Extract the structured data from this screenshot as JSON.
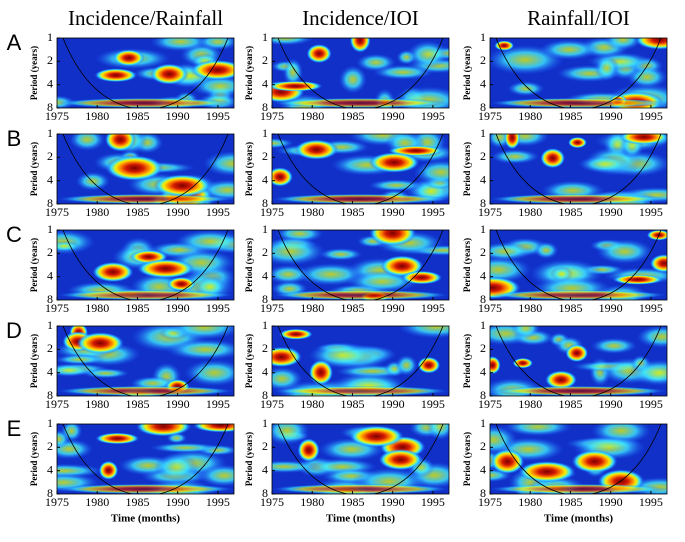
{
  "chart_data": {
    "type": "heatmap",
    "column_titles": [
      "Incidence/Rainfall",
      "Incidence/IOI",
      "Rainfall/IOI"
    ],
    "row_labels": [
      "A",
      "B",
      "C",
      "D",
      "E"
    ],
    "y_label": "Period (years)",
    "x_label": "Time (months)",
    "xlim": [
      1975,
      1997
    ],
    "xticks": [
      1975,
      1980,
      1985,
      1990,
      1995
    ],
    "ylim": [
      1,
      8
    ],
    "yticks": [
      1,
      2,
      4,
      8
    ],
    "y_log": true,
    "y_inverted": true
  }
}
